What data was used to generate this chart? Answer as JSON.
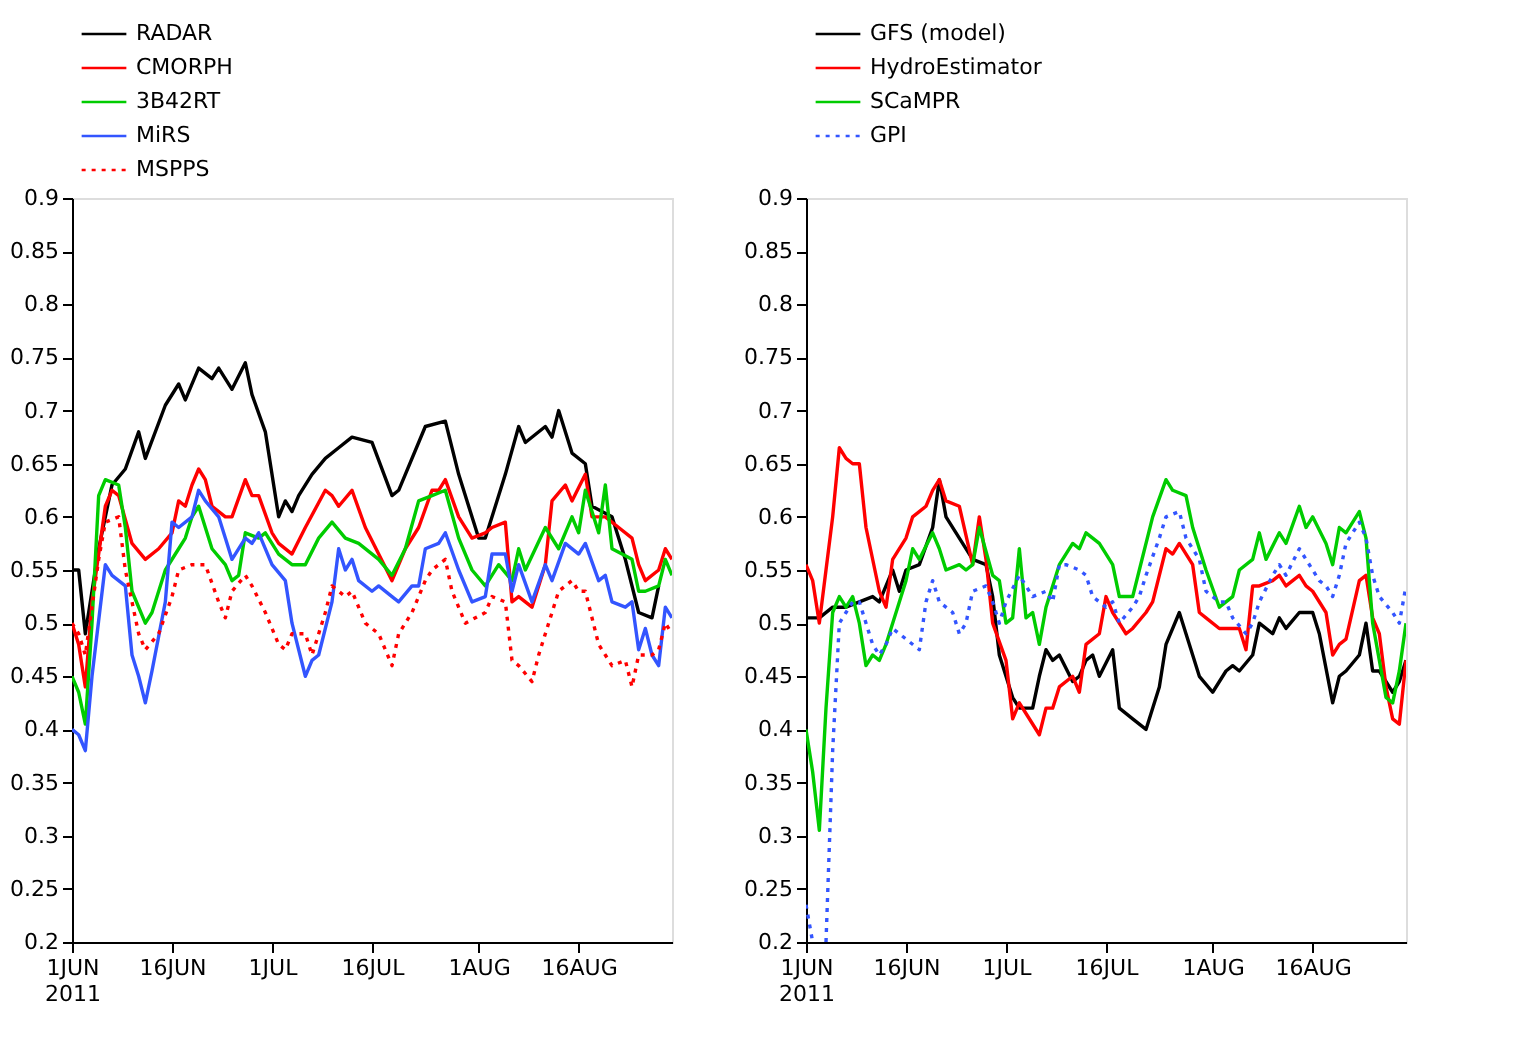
{
  "chart_data": [
    {
      "type": "line",
      "legend": "top left",
      "xlim": [
        "2011-06-01",
        "2011-08-30"
      ],
      "xticks": [
        {
          "value": "2011-06-01",
          "label": "1JUN\n2011"
        },
        {
          "value": "2011-06-16",
          "label": "16JUN"
        },
        {
          "value": "2011-07-01",
          "label": "1JUL"
        },
        {
          "value": "2011-07-16",
          "label": "16JUL"
        },
        {
          "value": "2011-08-01",
          "label": "1AUG"
        },
        {
          "value": "2011-08-16",
          "label": "16AUG"
        }
      ],
      "ylim": [
        0.2,
        0.9
      ],
      "yticks": [
        0.2,
        0.25,
        0.3,
        0.35,
        0.4,
        0.45,
        0.5,
        0.55,
        0.6,
        0.65,
        0.7,
        0.75,
        0.8,
        0.85,
        0.9
      ],
      "series": [
        {
          "name": "RADAR",
          "color": "#000000",
          "line_style": "solid",
          "x": [
            "2011-06-01",
            "2011-06-02",
            "2011-06-03",
            "2011-06-05",
            "2011-06-07",
            "2011-06-09",
            "2011-06-11",
            "2011-06-12",
            "2011-06-15",
            "2011-06-17",
            "2011-06-18",
            "2011-06-20",
            "2011-06-22",
            "2011-06-23",
            "2011-06-25",
            "2011-06-27",
            "2011-06-28",
            "2011-06-30",
            "2011-07-02",
            "2011-07-03",
            "2011-07-04",
            "2011-07-05",
            "2011-07-07",
            "2011-07-09",
            "2011-07-11",
            "2011-07-13",
            "2011-07-16",
            "2011-07-19",
            "2011-07-20",
            "2011-07-24",
            "2011-07-27",
            "2011-07-29",
            "2011-08-01",
            "2011-08-02",
            "2011-08-05",
            "2011-08-07",
            "2011-08-08",
            "2011-08-11",
            "2011-08-12",
            "2011-08-13",
            "2011-08-15",
            "2011-08-17",
            "2011-08-18",
            "2011-08-21",
            "2011-08-23",
            "2011-08-25",
            "2011-08-27",
            "2011-08-28"
          ],
          "values": [
            0.55,
            0.55,
            0.49,
            0.57,
            0.63,
            0.645,
            0.68,
            0.655,
            0.705,
            0.725,
            0.71,
            0.74,
            0.73,
            0.74,
            0.72,
            0.745,
            0.715,
            0.68,
            0.6,
            0.615,
            0.605,
            0.62,
            0.64,
            0.655,
            0.665,
            0.675,
            0.67,
            0.62,
            0.625,
            0.685,
            0.69,
            0.64,
            0.58,
            0.58,
            0.64,
            0.685,
            0.67,
            0.685,
            0.675,
            0.7,
            0.66,
            0.65,
            0.61,
            0.6,
            0.56,
            0.51,
            0.505,
            0.535
          ]
        },
        {
          "name": "CMORPH",
          "color": "#ff0000",
          "line_style": "solid",
          "x": [
            "2011-06-01",
            "2011-06-02",
            "2011-06-03",
            "2011-06-04",
            "2011-06-06",
            "2011-06-07",
            "2011-06-08",
            "2011-06-10",
            "2011-06-12",
            "2011-06-14",
            "2011-06-16",
            "2011-06-17",
            "2011-06-18",
            "2011-06-19",
            "2011-06-20",
            "2011-06-21",
            "2011-06-22",
            "2011-06-24",
            "2011-06-25",
            "2011-06-27",
            "2011-06-28",
            "2011-06-29",
            "2011-07-01",
            "2011-07-02",
            "2011-07-04",
            "2011-07-06",
            "2011-07-09",
            "2011-07-10",
            "2011-07-11",
            "2011-07-13",
            "2011-07-15",
            "2011-07-17",
            "2011-07-19",
            "2011-07-21",
            "2011-07-23",
            "2011-07-25",
            "2011-07-26",
            "2011-07-27",
            "2011-07-29",
            "2011-07-31",
            "2011-08-02",
            "2011-08-03",
            "2011-08-05",
            "2011-08-06",
            "2011-08-07",
            "2011-08-09",
            "2011-08-11",
            "2011-08-12",
            "2011-08-14",
            "2011-08-15",
            "2011-08-17",
            "2011-08-18",
            "2011-08-20",
            "2011-08-22",
            "2011-08-24",
            "2011-08-25",
            "2011-08-26",
            "2011-08-28",
            "2011-08-29",
            "2011-08-30"
          ],
          "values": [
            0.5,
            0.48,
            0.44,
            0.52,
            0.61,
            0.625,
            0.62,
            0.575,
            0.56,
            0.57,
            0.585,
            0.615,
            0.61,
            0.63,
            0.645,
            0.635,
            0.61,
            0.6,
            0.6,
            0.635,
            0.62,
            0.62,
            0.585,
            0.575,
            0.565,
            0.59,
            0.625,
            0.62,
            0.61,
            0.625,
            0.59,
            0.565,
            0.54,
            0.57,
            0.59,
            0.625,
            0.625,
            0.635,
            0.6,
            0.58,
            0.585,
            0.59,
            0.595,
            0.52,
            0.525,
            0.515,
            0.555,
            0.615,
            0.63,
            0.615,
            0.64,
            0.6,
            0.6,
            0.59,
            0.58,
            0.555,
            0.54,
            0.55,
            0.57,
            0.56
          ]
        },
        {
          "name": "3B42RT",
          "color": "#00cc00",
          "line_style": "solid",
          "x": [
            "2011-06-01",
            "2011-06-02",
            "2011-06-03",
            "2011-06-04",
            "2011-06-05",
            "2011-06-06",
            "2011-06-08",
            "2011-06-09",
            "2011-06-10",
            "2011-06-12",
            "2011-06-13",
            "2011-06-15",
            "2011-06-17",
            "2011-06-18",
            "2011-06-19",
            "2011-06-20",
            "2011-06-22",
            "2011-06-24",
            "2011-06-25",
            "2011-06-26",
            "2011-06-27",
            "2011-06-29",
            "2011-06-30",
            "2011-07-02",
            "2011-07-04",
            "2011-07-06",
            "2011-07-08",
            "2011-07-10",
            "2011-07-12",
            "2011-07-14",
            "2011-07-17",
            "2011-07-19",
            "2011-07-21",
            "2011-07-23",
            "2011-07-25",
            "2011-07-27",
            "2011-07-29",
            "2011-07-31",
            "2011-08-02",
            "2011-08-04",
            "2011-08-06",
            "2011-08-07",
            "2011-08-08",
            "2011-08-11",
            "2011-08-13",
            "2011-08-15",
            "2011-08-16",
            "2011-08-17",
            "2011-08-19",
            "2011-08-20",
            "2011-08-21",
            "2011-08-24",
            "2011-08-25",
            "2011-08-26",
            "2011-08-28",
            "2011-08-29",
            "2011-08-30"
          ],
          "values": [
            0.45,
            0.435,
            0.405,
            0.5,
            0.62,
            0.635,
            0.63,
            0.59,
            0.53,
            0.5,
            0.51,
            0.55,
            0.57,
            0.58,
            0.6,
            0.61,
            0.57,
            0.555,
            0.54,
            0.545,
            0.585,
            0.58,
            0.585,
            0.565,
            0.555,
            0.555,
            0.58,
            0.595,
            0.58,
            0.575,
            0.56,
            0.545,
            0.57,
            0.615,
            0.62,
            0.625,
            0.58,
            0.55,
            0.535,
            0.555,
            0.54,
            0.57,
            0.55,
            0.59,
            0.57,
            0.6,
            0.585,
            0.625,
            0.585,
            0.63,
            0.57,
            0.56,
            0.53,
            0.53,
            0.535,
            0.56,
            0.545
          ]
        },
        {
          "name": "MiRS",
          "color": "#3355ff",
          "line_style": "solid",
          "x": [
            "2011-06-01",
            "2011-06-02",
            "2011-06-03",
            "2011-06-04",
            "2011-06-06",
            "2011-06-07",
            "2011-06-09",
            "2011-06-10",
            "2011-06-11",
            "2011-06-12",
            "2011-06-13",
            "2011-06-15",
            "2011-06-16",
            "2011-06-17",
            "2011-06-19",
            "2011-06-20",
            "2011-06-21",
            "2011-06-23",
            "2011-06-24",
            "2011-06-25",
            "2011-06-27",
            "2011-06-28",
            "2011-06-29",
            "2011-07-01",
            "2011-07-03",
            "2011-07-04",
            "2011-07-06",
            "2011-07-07",
            "2011-07-08",
            "2011-07-10",
            "2011-07-11",
            "2011-07-12",
            "2011-07-13",
            "2011-07-14",
            "2011-07-16",
            "2011-07-17",
            "2011-07-19",
            "2011-07-20",
            "2011-07-22",
            "2011-07-23",
            "2011-07-24",
            "2011-07-26",
            "2011-07-27",
            "2011-07-29",
            "2011-07-31",
            "2011-08-02",
            "2011-08-03",
            "2011-08-05",
            "2011-08-06",
            "2011-08-07",
            "2011-08-09",
            "2011-08-11",
            "2011-08-12",
            "2011-08-14",
            "2011-08-16",
            "2011-08-17",
            "2011-08-19",
            "2011-08-20",
            "2011-08-21",
            "2011-08-23",
            "2011-08-24",
            "2011-08-25",
            "2011-08-26",
            "2011-08-27",
            "2011-08-28",
            "2011-08-29",
            "2011-08-30"
          ],
          "values": [
            0.4,
            0.395,
            0.38,
            0.45,
            0.555,
            0.545,
            0.535,
            0.47,
            0.45,
            0.425,
            0.455,
            0.52,
            0.595,
            0.59,
            0.6,
            0.625,
            0.615,
            0.6,
            0.58,
            0.56,
            0.58,
            0.575,
            0.585,
            0.555,
            0.54,
            0.5,
            0.45,
            0.465,
            0.47,
            0.52,
            0.57,
            0.55,
            0.56,
            0.54,
            0.53,
            0.535,
            0.525,
            0.52,
            0.535,
            0.535,
            0.57,
            0.575,
            0.585,
            0.55,
            0.52,
            0.525,
            0.565,
            0.565,
            0.53,
            0.555,
            0.52,
            0.555,
            0.54,
            0.575,
            0.565,
            0.575,
            0.54,
            0.545,
            0.52,
            0.515,
            0.52,
            0.475,
            0.495,
            0.47,
            0.46,
            0.515,
            0.505
          ]
        },
        {
          "name": "MSPPS",
          "color": "#ff0000",
          "line_style": "dotted",
          "x": [
            "2011-06-01",
            "2011-06-02",
            "2011-06-03",
            "2011-06-05",
            "2011-06-06",
            "2011-06-08",
            "2011-06-09",
            "2011-06-11",
            "2011-06-12",
            "2011-06-14",
            "2011-06-16",
            "2011-06-17",
            "2011-06-19",
            "2011-06-21",
            "2011-06-23",
            "2011-06-24",
            "2011-06-25",
            "2011-06-27",
            "2011-06-28",
            "2011-06-30",
            "2011-07-02",
            "2011-07-03",
            "2011-07-04",
            "2011-07-06",
            "2011-07-07",
            "2011-07-09",
            "2011-07-10",
            "2011-07-12",
            "2011-07-13",
            "2011-07-15",
            "2011-07-17",
            "2011-07-19",
            "2011-07-20",
            "2011-07-22",
            "2011-07-24",
            "2011-07-25",
            "2011-07-27",
            "2011-07-28",
            "2011-07-30",
            "2011-08-02",
            "2011-08-03",
            "2011-08-05",
            "2011-08-06",
            "2011-08-07",
            "2011-08-09",
            "2011-08-10",
            "2011-08-12",
            "2011-08-13",
            "2011-08-15",
            "2011-08-16",
            "2011-08-17",
            "2011-08-19",
            "2011-08-20",
            "2011-08-21",
            "2011-08-23",
            "2011-08-24",
            "2011-08-25",
            "2011-08-27",
            "2011-08-28",
            "2011-08-29",
            "2011-08-30"
          ],
          "values": [
            0.5,
            0.49,
            0.47,
            0.56,
            0.595,
            0.6,
            0.55,
            0.49,
            0.475,
            0.49,
            0.525,
            0.55,
            0.555,
            0.555,
            0.52,
            0.505,
            0.53,
            0.545,
            0.535,
            0.51,
            0.48,
            0.475,
            0.49,
            0.49,
            0.47,
            0.51,
            0.535,
            0.525,
            0.53,
            0.5,
            0.49,
            0.46,
            0.49,
            0.51,
            0.54,
            0.55,
            0.56,
            0.53,
            0.5,
            0.51,
            0.525,
            0.52,
            0.465,
            0.46,
            0.445,
            0.47,
            0.51,
            0.53,
            0.54,
            0.53,
            0.53,
            0.48,
            0.47,
            0.46,
            0.465,
            0.44,
            0.47,
            0.47,
            0.475,
            0.5,
            0.49
          ]
        }
      ]
    },
    {
      "type": "line",
      "legend": "top left",
      "xlim": [
        "2011-06-01",
        "2011-08-30"
      ],
      "xticks": [
        {
          "value": "2011-06-01",
          "label": "1JUN\n2011"
        },
        {
          "value": "2011-06-16",
          "label": "16JUN"
        },
        {
          "value": "2011-07-01",
          "label": "1JUL"
        },
        {
          "value": "2011-07-16",
          "label": "16JUL"
        },
        {
          "value": "2011-08-01",
          "label": "1AUG"
        },
        {
          "value": "2011-08-16",
          "label": "16AUG"
        }
      ],
      "ylim": [
        0.2,
        0.9
      ],
      "yticks": [
        0.2,
        0.25,
        0.3,
        0.35,
        0.4,
        0.45,
        0.5,
        0.55,
        0.6,
        0.65,
        0.7,
        0.75,
        0.8,
        0.85,
        0.9
      ],
      "series": [
        {
          "name": "GFS (model)",
          "color": "#000000",
          "line_style": "solid",
          "x": [
            "2011-06-01",
            "2011-06-03",
            "2011-06-05",
            "2011-06-07",
            "2011-06-09",
            "2011-06-11",
            "2011-06-12",
            "2011-06-14",
            "2011-06-15",
            "2011-06-16",
            "2011-06-18",
            "2011-06-20",
            "2011-06-21",
            "2011-06-22",
            "2011-06-24",
            "2011-06-26",
            "2011-06-28",
            "2011-06-29",
            "2011-06-30",
            "2011-07-02",
            "2011-07-03",
            "2011-07-05",
            "2011-07-06",
            "2011-07-07",
            "2011-07-08",
            "2011-07-09",
            "2011-07-11",
            "2011-07-12",
            "2011-07-13",
            "2011-07-14",
            "2011-07-15",
            "2011-07-17",
            "2011-07-18",
            "2011-07-20",
            "2011-07-22",
            "2011-07-24",
            "2011-07-25",
            "2011-07-27",
            "2011-07-28",
            "2011-07-30",
            "2011-08-01",
            "2011-08-03",
            "2011-08-04",
            "2011-08-05",
            "2011-08-07",
            "2011-08-08",
            "2011-08-10",
            "2011-08-11",
            "2011-08-12",
            "2011-08-14",
            "2011-08-16",
            "2011-08-17",
            "2011-08-19",
            "2011-08-20",
            "2011-08-21",
            "2011-08-23",
            "2011-08-24",
            "2011-08-25",
            "2011-08-26",
            "2011-08-28",
            "2011-08-29",
            "2011-08-30"
          ],
          "values": [
            0.505,
            0.505,
            0.515,
            0.515,
            0.52,
            0.525,
            0.52,
            0.55,
            0.53,
            0.55,
            0.555,
            0.59,
            0.635,
            0.6,
            0.58,
            0.56,
            0.555,
            0.525,
            0.47,
            0.43,
            0.42,
            0.42,
            0.45,
            0.475,
            0.465,
            0.47,
            0.445,
            0.45,
            0.465,
            0.47,
            0.45,
            0.475,
            0.42,
            0.41,
            0.4,
            0.44,
            0.48,
            0.51,
            0.49,
            0.45,
            0.435,
            0.455,
            0.46,
            0.455,
            0.47,
            0.5,
            0.49,
            0.505,
            0.495,
            0.51,
            0.51,
            0.49,
            0.425,
            0.45,
            0.455,
            0.47,
            0.5,
            0.455,
            0.455,
            0.435,
            0.445,
            0.465
          ]
        },
        {
          "name": "HydroEstimator",
          "color": "#ff0000",
          "line_style": "solid",
          "x": [
            "2011-06-01",
            "2011-06-02",
            "2011-06-03",
            "2011-06-04",
            "2011-06-05",
            "2011-06-06",
            "2011-06-07",
            "2011-06-08",
            "2011-06-09",
            "2011-06-10",
            "2011-06-12",
            "2011-06-13",
            "2011-06-14",
            "2011-06-16",
            "2011-06-17",
            "2011-06-19",
            "2011-06-20",
            "2011-06-21",
            "2011-06-22",
            "2011-06-24",
            "2011-06-26",
            "2011-06-27",
            "2011-06-28",
            "2011-06-29",
            "2011-07-01",
            "2011-07-02",
            "2011-07-03",
            "2011-07-04",
            "2011-07-06",
            "2011-07-07",
            "2011-07-08",
            "2011-07-09",
            "2011-07-11",
            "2011-07-12",
            "2011-07-13",
            "2011-07-15",
            "2011-07-16",
            "2011-07-17",
            "2011-07-19",
            "2011-07-20",
            "2011-07-22",
            "2011-07-23",
            "2011-07-25",
            "2011-07-26",
            "2011-07-27",
            "2011-07-29",
            "2011-07-30",
            "2011-07-31",
            "2011-08-02",
            "2011-08-03",
            "2011-08-05",
            "2011-08-06",
            "2011-08-07",
            "2011-08-08",
            "2011-08-10",
            "2011-08-11",
            "2011-08-12",
            "2011-08-14",
            "2011-08-15",
            "2011-08-16",
            "2011-08-18",
            "2011-08-19",
            "2011-08-20",
            "2011-08-21",
            "2011-08-23",
            "2011-08-24",
            "2011-08-25",
            "2011-08-26",
            "2011-08-27",
            "2011-08-28",
            "2011-08-29",
            "2011-08-30"
          ],
          "values": [
            0.555,
            0.54,
            0.5,
            0.55,
            0.6,
            0.665,
            0.655,
            0.65,
            0.65,
            0.59,
            0.53,
            0.515,
            0.56,
            0.58,
            0.6,
            0.61,
            0.625,
            0.635,
            0.615,
            0.61,
            0.555,
            0.6,
            0.56,
            0.5,
            0.465,
            0.41,
            0.425,
            0.415,
            0.395,
            0.42,
            0.42,
            0.44,
            0.45,
            0.435,
            0.48,
            0.49,
            0.525,
            0.51,
            0.49,
            0.495,
            0.51,
            0.52,
            0.57,
            0.565,
            0.575,
            0.555,
            0.51,
            0.505,
            0.495,
            0.495,
            0.495,
            0.475,
            0.535,
            0.535,
            0.54,
            0.545,
            0.535,
            0.545,
            0.535,
            0.53,
            0.51,
            0.47,
            0.48,
            0.485,
            0.54,
            0.545,
            0.505,
            0.49,
            0.44,
            0.41,
            0.405,
            0.465
          ]
        },
        {
          "name": "SCaMPR",
          "color": "#00cc00",
          "line_style": "solid",
          "x": [
            "2011-06-01",
            "2011-06-02",
            "2011-06-03",
            "2011-06-04",
            "2011-06-05",
            "2011-06-06",
            "2011-06-07",
            "2011-06-08",
            "2011-06-09",
            "2011-06-10",
            "2011-06-11",
            "2011-06-12",
            "2011-06-13",
            "2011-06-15",
            "2011-06-16",
            "2011-06-17",
            "2011-06-18",
            "2011-06-20",
            "2011-06-21",
            "2011-06-22",
            "2011-06-24",
            "2011-06-25",
            "2011-06-26",
            "2011-06-27",
            "2011-06-29",
            "2011-06-30",
            "2011-07-01",
            "2011-07-02",
            "2011-07-03",
            "2011-07-04",
            "2011-07-05",
            "2011-07-06",
            "2011-07-07",
            "2011-07-08",
            "2011-07-09",
            "2011-07-11",
            "2011-07-12",
            "2011-07-13",
            "2011-07-15",
            "2011-07-17",
            "2011-07-18",
            "2011-07-20",
            "2011-07-21",
            "2011-07-23",
            "2011-07-25",
            "2011-07-26",
            "2011-07-28",
            "2011-07-29",
            "2011-07-31",
            "2011-08-02",
            "2011-08-04",
            "2011-08-05",
            "2011-08-07",
            "2011-08-08",
            "2011-08-09",
            "2011-08-11",
            "2011-08-12",
            "2011-08-14",
            "2011-08-15",
            "2011-08-16",
            "2011-08-18",
            "2011-08-19",
            "2011-08-20",
            "2011-08-21",
            "2011-08-23",
            "2011-08-24",
            "2011-08-25",
            "2011-08-27",
            "2011-08-28",
            "2011-08-29",
            "2011-08-30"
          ],
          "values": [
            0.4,
            0.36,
            0.305,
            0.42,
            0.51,
            0.525,
            0.515,
            0.525,
            0.5,
            0.46,
            0.47,
            0.465,
            0.48,
            0.52,
            0.54,
            0.57,
            0.56,
            0.585,
            0.57,
            0.55,
            0.555,
            0.55,
            0.555,
            0.59,
            0.545,
            0.54,
            0.5,
            0.505,
            0.57,
            0.505,
            0.51,
            0.48,
            0.515,
            0.535,
            0.555,
            0.575,
            0.57,
            0.585,
            0.575,
            0.555,
            0.525,
            0.525,
            0.55,
            0.6,
            0.635,
            0.625,
            0.62,
            0.59,
            0.55,
            0.515,
            0.525,
            0.55,
            0.56,
            0.585,
            0.56,
            0.585,
            0.575,
            0.61,
            0.59,
            0.6,
            0.575,
            0.555,
            0.59,
            0.585,
            0.605,
            0.58,
            0.5,
            0.43,
            0.425,
            0.455,
            0.5
          ]
        },
        {
          "name": "GPI",
          "color": "#3355ff",
          "line_style": "dotted",
          "x": [
            "2011-06-01",
            "2011-06-02",
            "2011-06-03",
            "2011-06-04",
            "2011-06-05",
            "2011-06-06",
            "2011-06-07",
            "2011-06-08",
            "2011-06-09",
            "2011-06-10",
            "2011-06-11",
            "2011-06-12",
            "2011-06-13",
            "2011-06-14",
            "2011-06-15",
            "2011-06-16",
            "2011-06-18",
            "2011-06-19",
            "2011-06-20",
            "2011-06-21",
            "2011-06-23",
            "2011-06-24",
            "2011-06-25",
            "2011-06-26",
            "2011-06-28",
            "2011-06-29",
            "2011-06-30",
            "2011-07-01",
            "2011-07-03",
            "2011-07-04",
            "2011-07-05",
            "2011-07-07",
            "2011-07-08",
            "2011-07-09",
            "2011-07-10",
            "2011-07-12",
            "2011-07-13",
            "2011-07-14",
            "2011-07-16",
            "2011-07-17",
            "2011-07-18",
            "2011-07-20",
            "2011-07-21",
            "2011-07-22",
            "2011-07-24",
            "2011-07-25",
            "2011-07-27",
            "2011-07-28",
            "2011-07-30",
            "2011-07-31",
            "2011-08-02",
            "2011-08-03",
            "2011-08-04",
            "2011-08-06",
            "2011-08-07",
            "2011-08-08",
            "2011-08-10",
            "2011-08-11",
            "2011-08-12",
            "2011-08-14",
            "2011-08-16",
            "2011-08-17",
            "2011-08-18",
            "2011-08-19",
            "2011-08-20",
            "2011-08-21",
            "2011-08-23",
            "2011-08-24",
            "2011-08-25",
            "2011-08-26",
            "2011-08-28",
            "2011-08-29",
            "2011-08-30"
          ],
          "values": [
            0.235,
            0.2,
            null,
            0.2,
            0.38,
            0.5,
            0.51,
            0.52,
            0.52,
            0.5,
            0.48,
            0.47,
            0.48,
            0.495,
            0.49,
            0.485,
            0.475,
            0.52,
            0.54,
            0.52,
            0.51,
            0.49,
            0.5,
            0.53,
            0.535,
            0.52,
            0.5,
            0.52,
            0.545,
            0.535,
            0.525,
            0.53,
            0.52,
            0.555,
            0.555,
            0.55,
            0.545,
            0.525,
            0.515,
            0.52,
            0.5,
            0.515,
            0.525,
            0.545,
            0.58,
            0.6,
            0.605,
            0.58,
            0.56,
            0.53,
            0.52,
            0.52,
            0.505,
            0.49,
            0.5,
            0.52,
            0.545,
            0.555,
            0.545,
            0.57,
            0.55,
            0.54,
            0.535,
            0.525,
            0.545,
            0.575,
            0.595,
            0.58,
            0.545,
            0.525,
            0.51,
            0.5,
            0.535
          ]
        }
      ]
    }
  ]
}
